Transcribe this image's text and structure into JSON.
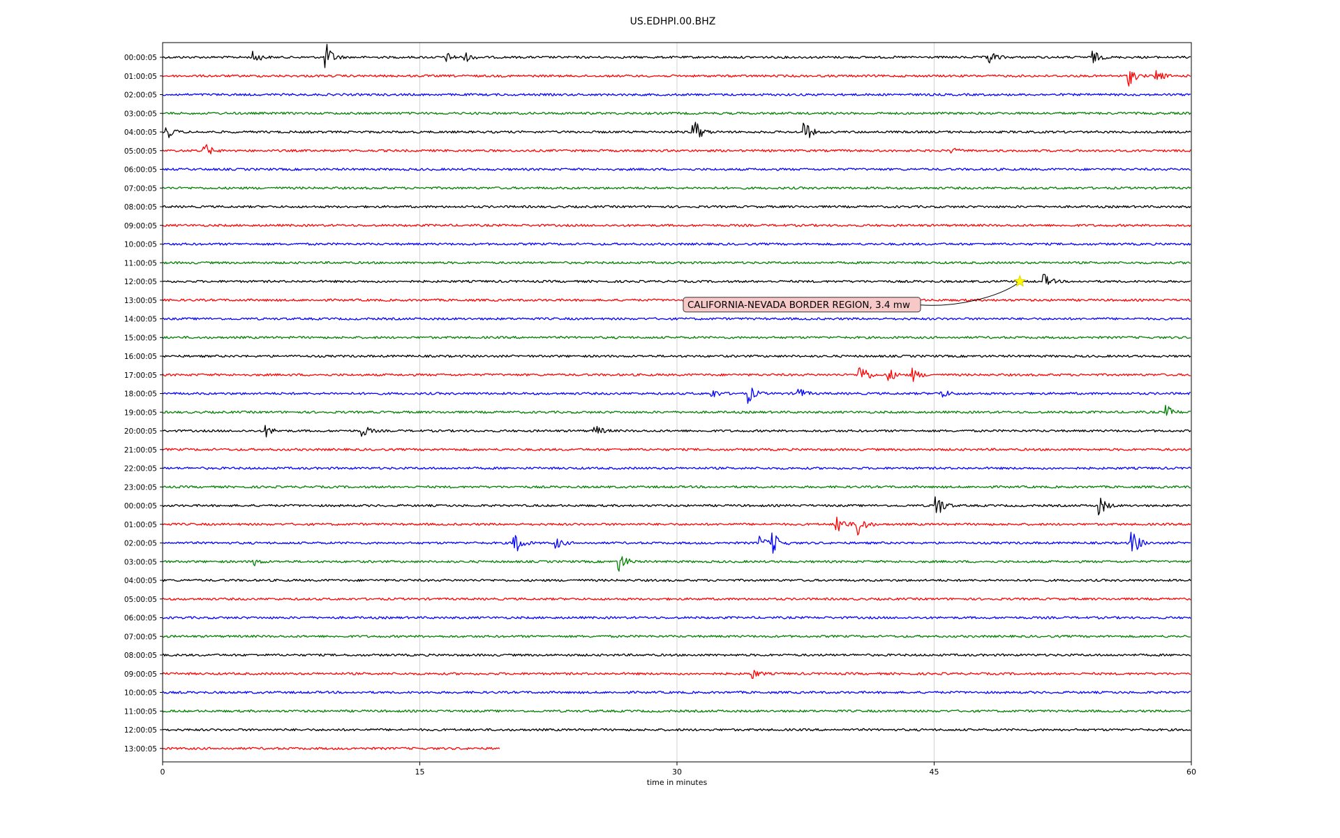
{
  "chart_data": {
    "type": "line",
    "title": "US.EDHPI.00.BHZ",
    "xlabel": "time in minutes",
    "ylabel": "",
    "xlim": [
      0,
      60
    ],
    "x_ticks": [
      "0",
      "15",
      "30",
      "45",
      "60"
    ],
    "grid": "vertical lines at 15, 30, 45",
    "row_labels": [
      "00:00:05",
      "01:00:05",
      "02:00:05",
      "03:00:05",
      "04:00:05",
      "05:00:05",
      "06:00:05",
      "07:00:05",
      "08:00:05",
      "09:00:05",
      "10:00:05",
      "11:00:05",
      "12:00:05",
      "13:00:05",
      "14:00:05",
      "15:00:05",
      "16:00:05",
      "17:00:05",
      "18:00:05",
      "19:00:05",
      "20:00:05",
      "21:00:05",
      "22:00:05",
      "23:00:05",
      "00:00:05",
      "01:00:05",
      "02:00:05",
      "03:00:05",
      "04:00:05",
      "05:00:05",
      "06:00:05",
      "07:00:05",
      "08:00:05",
      "09:00:05",
      "10:00:05",
      "11:00:05",
      "12:00:05",
      "13:00:05"
    ],
    "trace_colors": [
      "#000000",
      "#ff0000",
      "#0000ff",
      "#008000"
    ],
    "last_row_end_minute": 19.7,
    "events": [
      {
        "row": 0,
        "minute": 5.3,
        "amp": 0.5
      },
      {
        "row": 0,
        "minute": 9.5,
        "amp": 1.2
      },
      {
        "row": 0,
        "minute": 16.5,
        "amp": 0.4
      },
      {
        "row": 0,
        "minute": 17.6,
        "amp": 0.4
      },
      {
        "row": 0,
        "minute": 48.1,
        "amp": 0.8
      },
      {
        "row": 0,
        "minute": 54.2,
        "amp": 0.6
      },
      {
        "row": 1,
        "minute": 56.3,
        "amp": 0.9
      },
      {
        "row": 1,
        "minute": 57.9,
        "amp": 0.6
      },
      {
        "row": 4,
        "minute": 30.9,
        "amp": 1.5
      },
      {
        "row": 4,
        "minute": 37.4,
        "amp": 1.0
      },
      {
        "row": 4,
        "minute": 0.2,
        "amp": 0.6
      },
      {
        "row": 5,
        "minute": 2.4,
        "amp": 0.7
      },
      {
        "row": 5,
        "minute": 46.0,
        "amp": 0.2
      },
      {
        "row": 12,
        "minute": 51.4,
        "amp": 0.6
      },
      {
        "row": 17,
        "minute": 40.6,
        "amp": 1.5
      },
      {
        "row": 17,
        "minute": 42.3,
        "amp": 0.6
      },
      {
        "row": 17,
        "minute": 43.7,
        "amp": 0.6
      },
      {
        "row": 18,
        "minute": 34.1,
        "amp": 0.9
      },
      {
        "row": 18,
        "minute": 37.0,
        "amp": 0.6
      },
      {
        "row": 18,
        "minute": 45.4,
        "amp": 0.4
      },
      {
        "row": 18,
        "minute": 32.0,
        "amp": 0.4
      },
      {
        "row": 19,
        "minute": 58.5,
        "amp": 0.6
      },
      {
        "row": 20,
        "minute": 6.0,
        "amp": 0.5
      },
      {
        "row": 20,
        "minute": 11.6,
        "amp": 0.6
      },
      {
        "row": 20,
        "minute": 25.2,
        "amp": 0.5
      },
      {
        "row": 24,
        "minute": 45.0,
        "amp": 1.6
      },
      {
        "row": 24,
        "minute": 54.6,
        "amp": 0.9
      },
      {
        "row": 25,
        "minute": 39.3,
        "amp": 1.0
      },
      {
        "row": 25,
        "minute": 40.5,
        "amp": 1.2
      },
      {
        "row": 26,
        "minute": 20.5,
        "amp": 1.2
      },
      {
        "row": 26,
        "minute": 22.9,
        "amp": 0.5
      },
      {
        "row": 26,
        "minute": 35.5,
        "amp": 1.2
      },
      {
        "row": 26,
        "minute": 34.8,
        "amp": 0.6
      },
      {
        "row": 26,
        "minute": 56.5,
        "amp": 1.4
      },
      {
        "row": 27,
        "minute": 26.6,
        "amp": 0.9
      },
      {
        "row": 27,
        "minute": 5.3,
        "amp": 0.3
      },
      {
        "row": 33,
        "minute": 34.3,
        "amp": 0.5
      }
    ],
    "annotation": {
      "text": "CALIFORNIA-NEVADA BORDER REGION, 3.4 mw",
      "event_row": 12,
      "event_minute": 50.0,
      "marker": "star",
      "marker_color": "#ffff00"
    }
  }
}
